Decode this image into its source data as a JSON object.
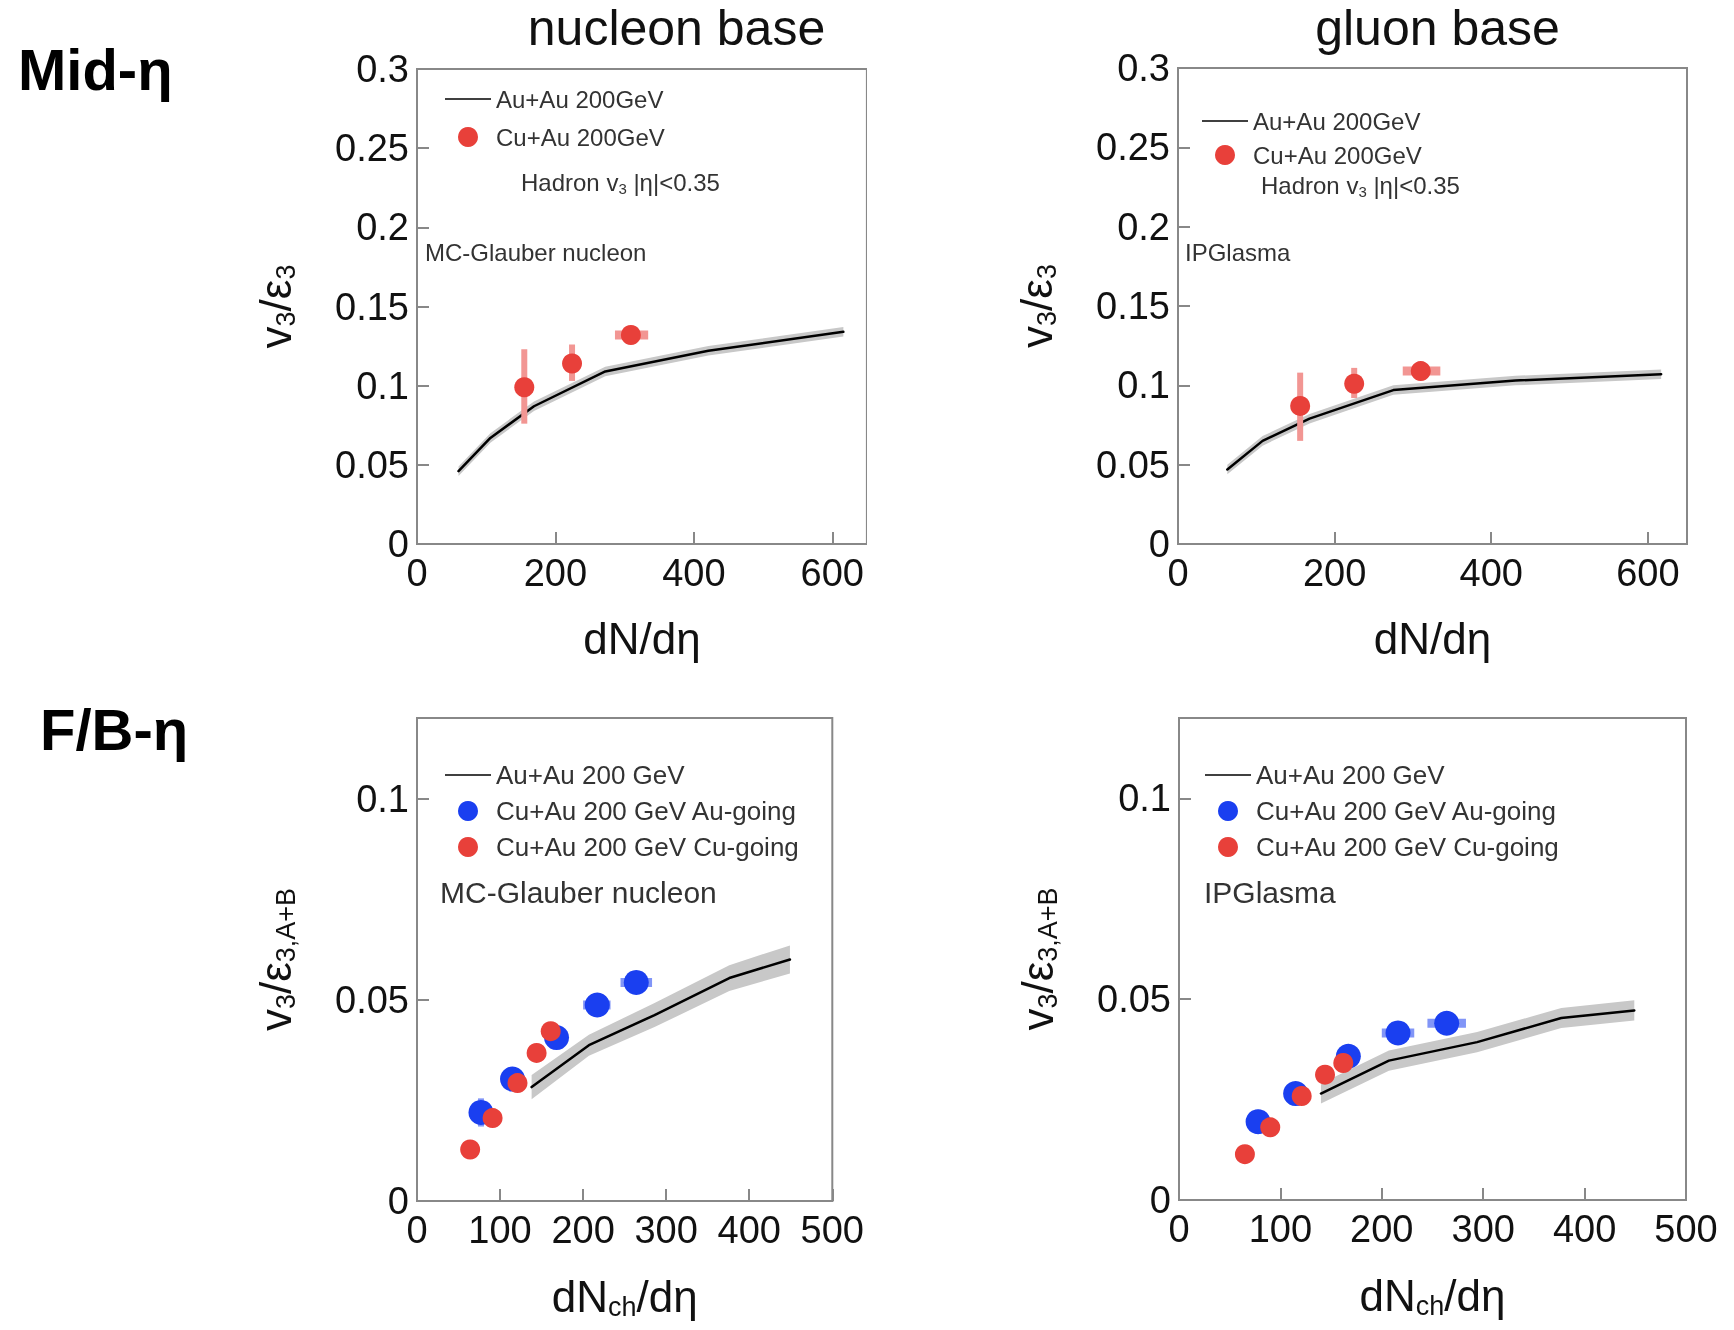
{
  "chart_data": [
    {
      "type": "scatter",
      "title": "nucleon base",
      "xlabel": "dN/dη",
      "ylabel": "v$_{3}$/ε$_{3}$",
      "xlim": [
        0,
        650
      ],
      "xticks": [
        0,
        200,
        400,
        600
      ],
      "ylim": [
        0,
        0.3
      ],
      "yticks": [
        0,
        0.05,
        0.1,
        0.15,
        0.2,
        0.25,
        0.3
      ],
      "legend": "top left",
      "annotations": [
        "Mid-η",
        "Hadron v$_{3}$ |η|<0.35",
        "MC-Glauber nucleon"
      ],
      "series": [
        {
          "name": "Au+Au 200GeV",
          "type": "line",
          "color": "#000000",
          "marker": "none",
          "line_style": "solid",
          "x": [
            60,
            106,
            169,
            272,
            421,
            616
          ],
          "values": [
            0.046,
            0.067,
            0.087,
            0.109,
            0.122,
            0.134
          ],
          "lower": [
            0.043,
            0.064,
            0.084,
            0.106,
            0.119,
            0.131
          ],
          "upper": [
            0.049,
            0.07,
            0.09,
            0.112,
            0.125,
            0.137
          ]
        },
        {
          "name": "Cu+Au 200GeV",
          "color": "#e8403a",
          "marker": "circle",
          "x": [
            155,
            224,
            309
          ],
          "values": [
            0.099,
            0.114,
            0.132
          ],
          "errors": [
            [
              0.076,
              0.123
            ],
            [
              0.103,
              0.126
            ],
            null
          ],
          "xerrors": [
            null,
            null,
            [
              286,
              334
            ]
          ]
        }
      ]
    },
    {
      "type": "scatter",
      "title": "gluon base",
      "xlabel": "dN/dη",
      "ylabel": "v$_{3}$/ε$_{3}$",
      "xlim": [
        0,
        650
      ],
      "xticks": [
        0,
        200,
        400,
        600
      ],
      "ylim": [
        0,
        0.3
      ],
      "yticks": [
        0,
        0.05,
        0.1,
        0.15,
        0.2,
        0.25,
        0.3
      ],
      "legend": "top left",
      "annotations": [
        "Hadron v$_{3}$ |η|<0.35",
        "IPGlasma"
      ],
      "series": [
        {
          "name": "Au+Au 200GeV",
          "type": "line",
          "color": "#000000",
          "marker": "none",
          "line_style": "solid",
          "x": [
            63,
            108,
            168,
            275,
            431,
            617
          ],
          "values": [
            0.047,
            0.065,
            0.079,
            0.097,
            0.103,
            0.107
          ],
          "lower": [
            0.044,
            0.062,
            0.076,
            0.094,
            0.1,
            0.104
          ],
          "upper": [
            0.05,
            0.068,
            0.082,
            0.1,
            0.106,
            0.11
          ]
        },
        {
          "name": "Cu+Au 200GeV",
          "color": "#e8403a",
          "marker": "circle",
          "x": [
            156,
            225,
            310
          ],
          "values": [
            0.087,
            0.101,
            0.109
          ],
          "errors": [
            [
              0.065,
              0.108
            ],
            [
              0.092,
              0.111
            ],
            null
          ],
          "xerrors": [
            null,
            null,
            [
              287,
              335
            ]
          ]
        }
      ]
    },
    {
      "type": "scatter",
      "xlabel": "dN$_{ch}$/dη",
      "ylabel": "v$_{3}$/ε$_{3,A+B}$",
      "xlim": [
        0,
        500
      ],
      "xticks": [
        0,
        100,
        200,
        300,
        400,
        500
      ],
      "ylim": [
        0,
        0.12
      ],
      "yticks": [
        0,
        0.05,
        0.1
      ],
      "legend": "top left",
      "annotations": [
        "F/B-η",
        "MC-Glauber nucleon"
      ],
      "series": [
        {
          "name": "Au+Au 200 GeV",
          "type": "line",
          "color": "#000000",
          "marker": "none",
          "line_style": "solid",
          "x": [
            138,
            207,
            286,
            376,
            449
          ],
          "values": [
            0.0283,
            0.0387,
            0.0462,
            0.0554,
            0.06
          ],
          "lower": [
            0.0253,
            0.0361,
            0.0432,
            0.0522,
            0.0565
          ],
          "upper": [
            0.0313,
            0.0413,
            0.0492,
            0.0586,
            0.0635
          ]
        },
        {
          "name": "Cu+Au 200 GeV Au-going",
          "color": "#1a3ff0",
          "marker": "circle",
          "x": [
            77,
            115,
            168,
            217,
            264
          ],
          "values": [
            0.022,
            0.0303,
            0.0406,
            0.0487,
            0.0543
          ],
          "errors": [
            [
              0.0185,
              0.0255
            ],
            null,
            null,
            null,
            null
          ],
          "xerrors": [
            null,
            null,
            null,
            [
              200,
              233
            ],
            [
              245,
              283
            ]
          ]
        },
        {
          "name": "Cu+Au 200 GeV Cu-going",
          "color": "#e8403a",
          "marker": "circle",
          "x": [
            64,
            91,
            121,
            144,
            161
          ],
          "values": [
            0.0128,
            0.0206,
            0.0293,
            0.0368,
            0.0422
          ]
        }
      ]
    },
    {
      "type": "scatter",
      "xlabel": "dN$_{ch}$/dη",
      "ylabel": "v$_{3}$/ε$_{3,A+B}$",
      "xlim": [
        0,
        500
      ],
      "xticks": [
        0,
        100,
        200,
        300,
        400,
        500
      ],
      "ylim": [
        0,
        0.12
      ],
      "yticks": [
        0,
        0.05,
        0.1
      ],
      "legend": "top left",
      "annotations": [
        "IPGlasma"
      ],
      "series": [
        {
          "name": "Au+Au 200 GeV",
          "type": "line",
          "color": "#000000",
          "marker": "none",
          "line_style": "solid",
          "x": [
            140,
            207,
            294,
            377,
            449
          ],
          "values": [
            0.0265,
            0.0347,
            0.0393,
            0.0453,
            0.0472
          ],
          "lower": [
            0.024,
            0.0322,
            0.0368,
            0.0428,
            0.0447
          ],
          "upper": [
            0.029,
            0.0372,
            0.0418,
            0.0478,
            0.0497
          ]
        },
        {
          "name": "Cu+Au 200 GeV Au-going",
          "color": "#1a3ff0",
          "marker": "circle",
          "x": [
            78,
            115,
            167,
            216,
            264
          ],
          "values": [
            0.0195,
            0.0265,
            0.0358,
            0.0416,
            0.044
          ],
          "errors": [
            [
              0.0165,
              0.0225
            ],
            null,
            null,
            null,
            null
          ],
          "xerrors": [
            null,
            null,
            null,
            [
              200,
              232
            ],
            [
              245,
              283
            ]
          ]
        },
        {
          "name": "Cu+Au 200 GeV Cu-going",
          "color": "#e8403a",
          "marker": "circle",
          "x": [
            65,
            90,
            121,
            144,
            162
          ],
          "values": [
            0.0114,
            0.0181,
            0.0259,
            0.0312,
            0.0341
          ]
        }
      ]
    }
  ]
}
